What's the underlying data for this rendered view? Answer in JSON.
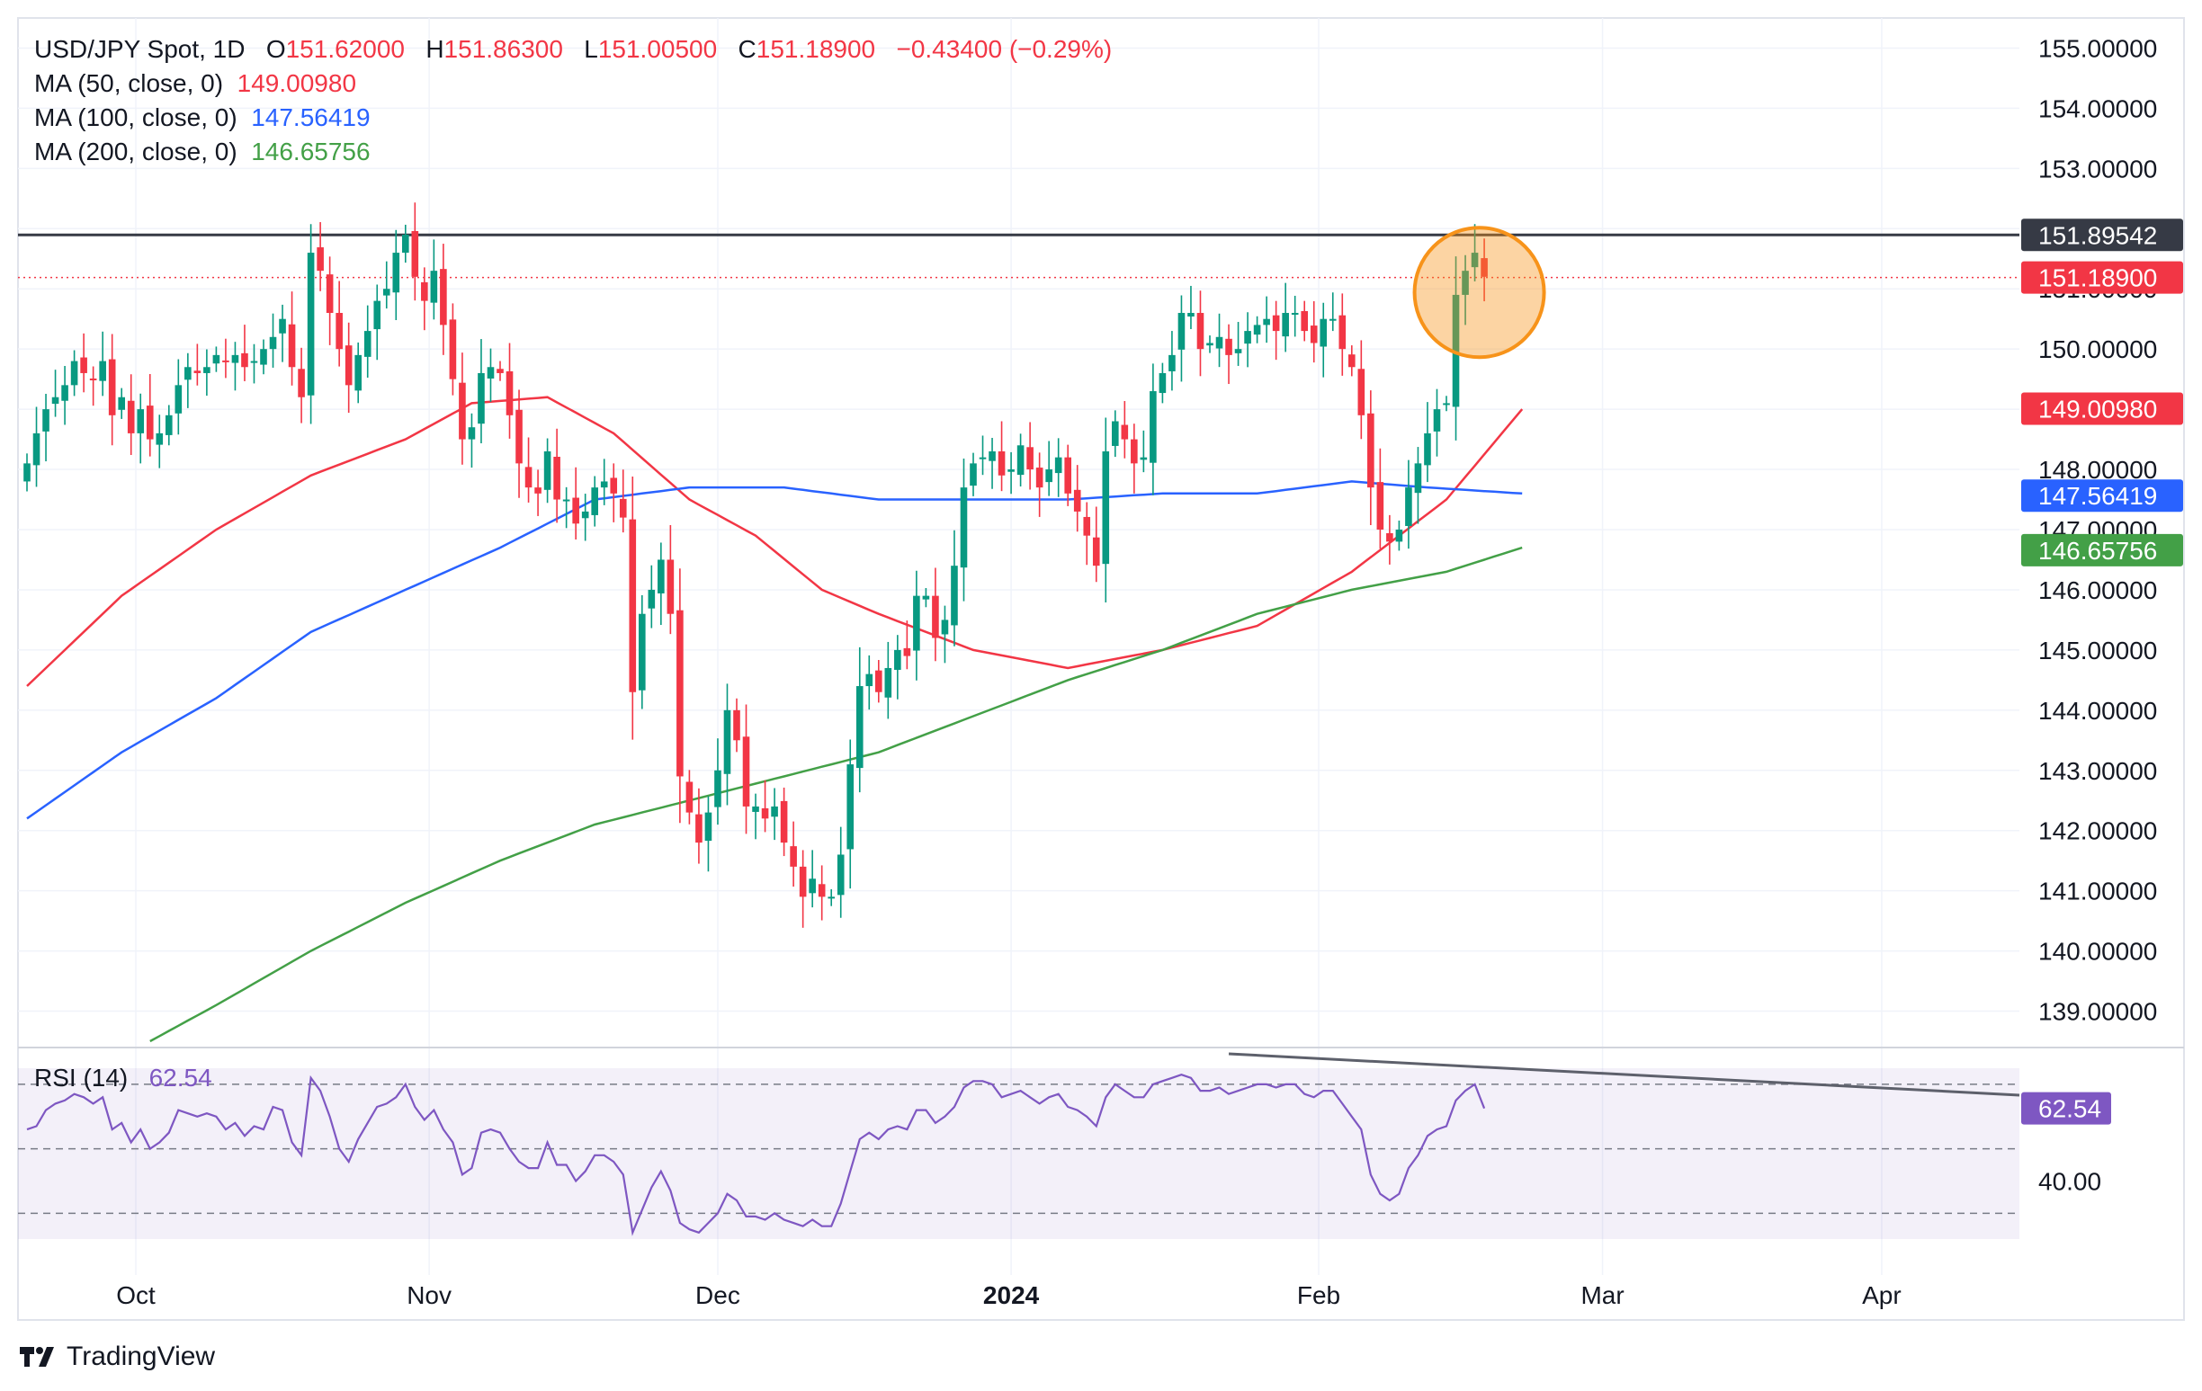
{
  "header": {
    "symbol": "USD/JPY Spot, 1D",
    "ohlc": [
      {
        "label": "O",
        "value": "151.62000"
      },
      {
        "label": "H",
        "value": "151.86300"
      },
      {
        "label": "L",
        "value": "151.00500"
      },
      {
        "label": "C",
        "value": "151.18900"
      }
    ],
    "change": "−0.43400 (−0.29%)"
  },
  "indicators": [
    {
      "label": "MA (50, close, 0)",
      "value": "149.00980",
      "color": "#f23645"
    },
    {
      "label": "MA (100, close, 0)",
      "value": "147.56419",
      "color": "#2962ff"
    },
    {
      "label": "MA (200, close, 0)",
      "value": "146.65756",
      "color": "#43a047"
    }
  ],
  "rsi": {
    "label": "RSI (14)",
    "value": "62.54",
    "color": "#7e57c2",
    "upper": 70,
    "lower": 30,
    "mid": 50
  },
  "brand": "TradingView",
  "colors": {
    "up": "#089981",
    "down": "#f23645",
    "highlight": "#f7931a",
    "resistance": "#363a45"
  },
  "chart_data": {
    "type": "candlestick",
    "title": "USD/JPY Spot, 1D",
    "x_tick_labels": [
      "Oct",
      "Nov",
      "Dec",
      "2024",
      "Feb",
      "Mar",
      "Apr"
    ],
    "y_tick_labels": [
      "139.00000",
      "140.00000",
      "141.00000",
      "142.00000",
      "143.00000",
      "144.00000",
      "145.00000",
      "146.00000",
      "147.00000",
      "148.00000",
      "149.00000",
      "150.00000",
      "151.00000",
      "152.00000",
      "153.00000",
      "154.00000",
      "155.00000"
    ],
    "ylim": [
      138.5,
      155.5
    ],
    "resistance_level": 151.89542,
    "last_price": 151.189,
    "price_tags": [
      {
        "value": "151.89542",
        "level": 151.89542,
        "color": "#363a45"
      },
      {
        "value": "151.18900",
        "level": 151.189,
        "color": "#f23645"
      },
      {
        "value": "149.00980",
        "level": 149.0098,
        "color": "#f23645"
      },
      {
        "value": "147.56419",
        "level": 147.56419,
        "color": "#2962ff"
      },
      {
        "value": "146.65756",
        "level": 146.65756,
        "color": "#43a047"
      }
    ],
    "rsi_tick_labels": [
      "40.00"
    ],
    "rsi_ylim": [
      22,
      75
    ],
    "closes": [
      148.1,
      148.6,
      149.0,
      149.2,
      149.4,
      149.8,
      149.6,
      149.5,
      149.8,
      148.9,
      149.2,
      148.6,
      149.0,
      148.5,
      148.6,
      148.9,
      149.4,
      149.7,
      149.6,
      149.7,
      149.9,
      149.8,
      149.9,
      149.7,
      149.8,
      150.0,
      150.2,
      150.5,
      149.7,
      149.2,
      151.6,
      151.3,
      150.6,
      150.0,
      149.4,
      149.9,
      150.3,
      150.8,
      151.0,
      151.6,
      151.9,
      151.2,
      150.8,
      151.3,
      150.4,
      149.5,
      148.5,
      148.7,
      149.6,
      149.7,
      149.6,
      148.9,
      148.1,
      147.7,
      147.6,
      148.3,
      147.5,
      147.5,
      147.1,
      147.3,
      147.7,
      147.8,
      147.6,
      147.2,
      144.3,
      145.6,
      146.0,
      146.5,
      145.6,
      142.9,
      142.3,
      141.8,
      142.3,
      143.0,
      144.0,
      143.5,
      142.4,
      142.4,
      142.2,
      142.4,
      141.8,
      141.4,
      140.9,
      141.2,
      140.9,
      140.9,
      141.6,
      143.1,
      144.4,
      144.6,
      144.3,
      144.7,
      145.0,
      144.9,
      145.9,
      145.9,
      145.2,
      145.5,
      146.4,
      147.7,
      148.1,
      148.2,
      148.3,
      147.9,
      148.0,
      148.4,
      148.0,
      147.7,
      148.0,
      148.2,
      147.6,
      147.3,
      146.9,
      146.4,
      148.3,
      148.8,
      148.5,
      148.1,
      148.2,
      149.3,
      149.6,
      149.9,
      150.6,
      150.6,
      150.0,
      150.1,
      150.2,
      149.9,
      150.0,
      150.3,
      150.4,
      150.5,
      150.3,
      150.6,
      150.6,
      150.3,
      150.1,
      150.5,
      150.5,
      150.0,
      149.7,
      148.9,
      147.7,
      147.0,
      146.8,
      147.0,
      147.7,
      148.1,
      148.6,
      149.0,
      149.1,
      150.9,
      151.3,
      151.6,
      151.2
    ],
    "rsi_values": [
      56,
      57,
      62,
      64,
      65,
      67,
      66,
      64,
      66,
      56,
      58,
      52,
      56,
      50,
      52,
      55,
      62,
      61,
      60,
      61,
      60,
      56,
      58,
      54,
      57,
      56,
      63,
      62,
      52,
      48,
      72,
      68,
      60,
      50,
      46,
      53,
      58,
      63,
      64,
      66,
      70,
      63,
      59,
      62,
      56,
      52,
      42,
      44,
      55,
      56,
      55,
      50,
      46,
      44,
      44,
      52,
      45,
      45,
      40,
      43,
      48,
      48,
      46,
      42,
      24,
      31,
      38,
      43,
      37,
      27,
      25,
      24,
      27,
      30,
      36,
      34,
      29,
      29,
      28,
      30,
      28,
      27,
      26,
      28,
      26,
      26,
      33,
      43,
      53,
      55,
      53,
      56,
      57,
      56,
      62,
      62,
      58,
      60,
      63,
      69,
      71,
      71,
      70,
      66,
      67,
      68,
      66,
      64,
      66,
      67,
      63,
      62,
      60,
      57,
      66,
      70,
      68,
      66,
      66,
      70,
      71,
      72,
      73,
      72,
      68,
      68,
      69,
      67,
      68,
      69,
      70,
      70,
      69,
      70,
      70,
      67,
      66,
      68,
      68,
      64,
      60,
      56,
      42,
      36,
      34,
      36,
      44,
      48,
      54,
      56,
      57,
      65,
      68,
      70,
      62.54
    ],
    "ma_series": [
      {
        "name": "MA (50, close, 0)",
        "color": "#f23645",
        "knots": [
          [
            0,
            144.4
          ],
          [
            10,
            145.9
          ],
          [
            20,
            147.0
          ],
          [
            30,
            147.9
          ],
          [
            40,
            148.5
          ],
          [
            47,
            149.1
          ],
          [
            55,
            149.2
          ],
          [
            62,
            148.6
          ],
          [
            70,
            147.5
          ],
          [
            77,
            146.9
          ],
          [
            84,
            146.0
          ],
          [
            90,
            145.6
          ],
          [
            100,
            145.0
          ],
          [
            110,
            144.7
          ],
          [
            120,
            145.0
          ],
          [
            130,
            145.4
          ],
          [
            140,
            146.3
          ],
          [
            150,
            147.5
          ],
          [
            158,
            149.0
          ]
        ]
      },
      {
        "name": "MA (100, close, 0)",
        "color": "#2962ff",
        "knots": [
          [
            0,
            142.2
          ],
          [
            10,
            143.3
          ],
          [
            20,
            144.2
          ],
          [
            30,
            145.3
          ],
          [
            40,
            146.0
          ],
          [
            50,
            146.7
          ],
          [
            60,
            147.5
          ],
          [
            70,
            147.7
          ],
          [
            80,
            147.7
          ],
          [
            90,
            147.5
          ],
          [
            100,
            147.5
          ],
          [
            110,
            147.5
          ],
          [
            120,
            147.6
          ],
          [
            130,
            147.6
          ],
          [
            140,
            147.8
          ],
          [
            148,
            147.7
          ],
          [
            158,
            147.6
          ]
        ]
      },
      {
        "name": "MA (200, close, 0)",
        "color": "#43a047",
        "knots": [
          [
            13,
            138.5
          ],
          [
            20,
            139.1
          ],
          [
            30,
            140.0
          ],
          [
            40,
            140.8
          ],
          [
            50,
            141.5
          ],
          [
            60,
            142.1
          ],
          [
            70,
            142.5
          ],
          [
            80,
            142.9
          ],
          [
            90,
            143.3
          ],
          [
            100,
            143.9
          ],
          [
            110,
            144.5
          ],
          [
            120,
            145.0
          ],
          [
            130,
            145.6
          ],
          [
            140,
            146.0
          ],
          [
            150,
            146.3
          ],
          [
            158,
            146.7
          ]
        ]
      }
    ]
  }
}
